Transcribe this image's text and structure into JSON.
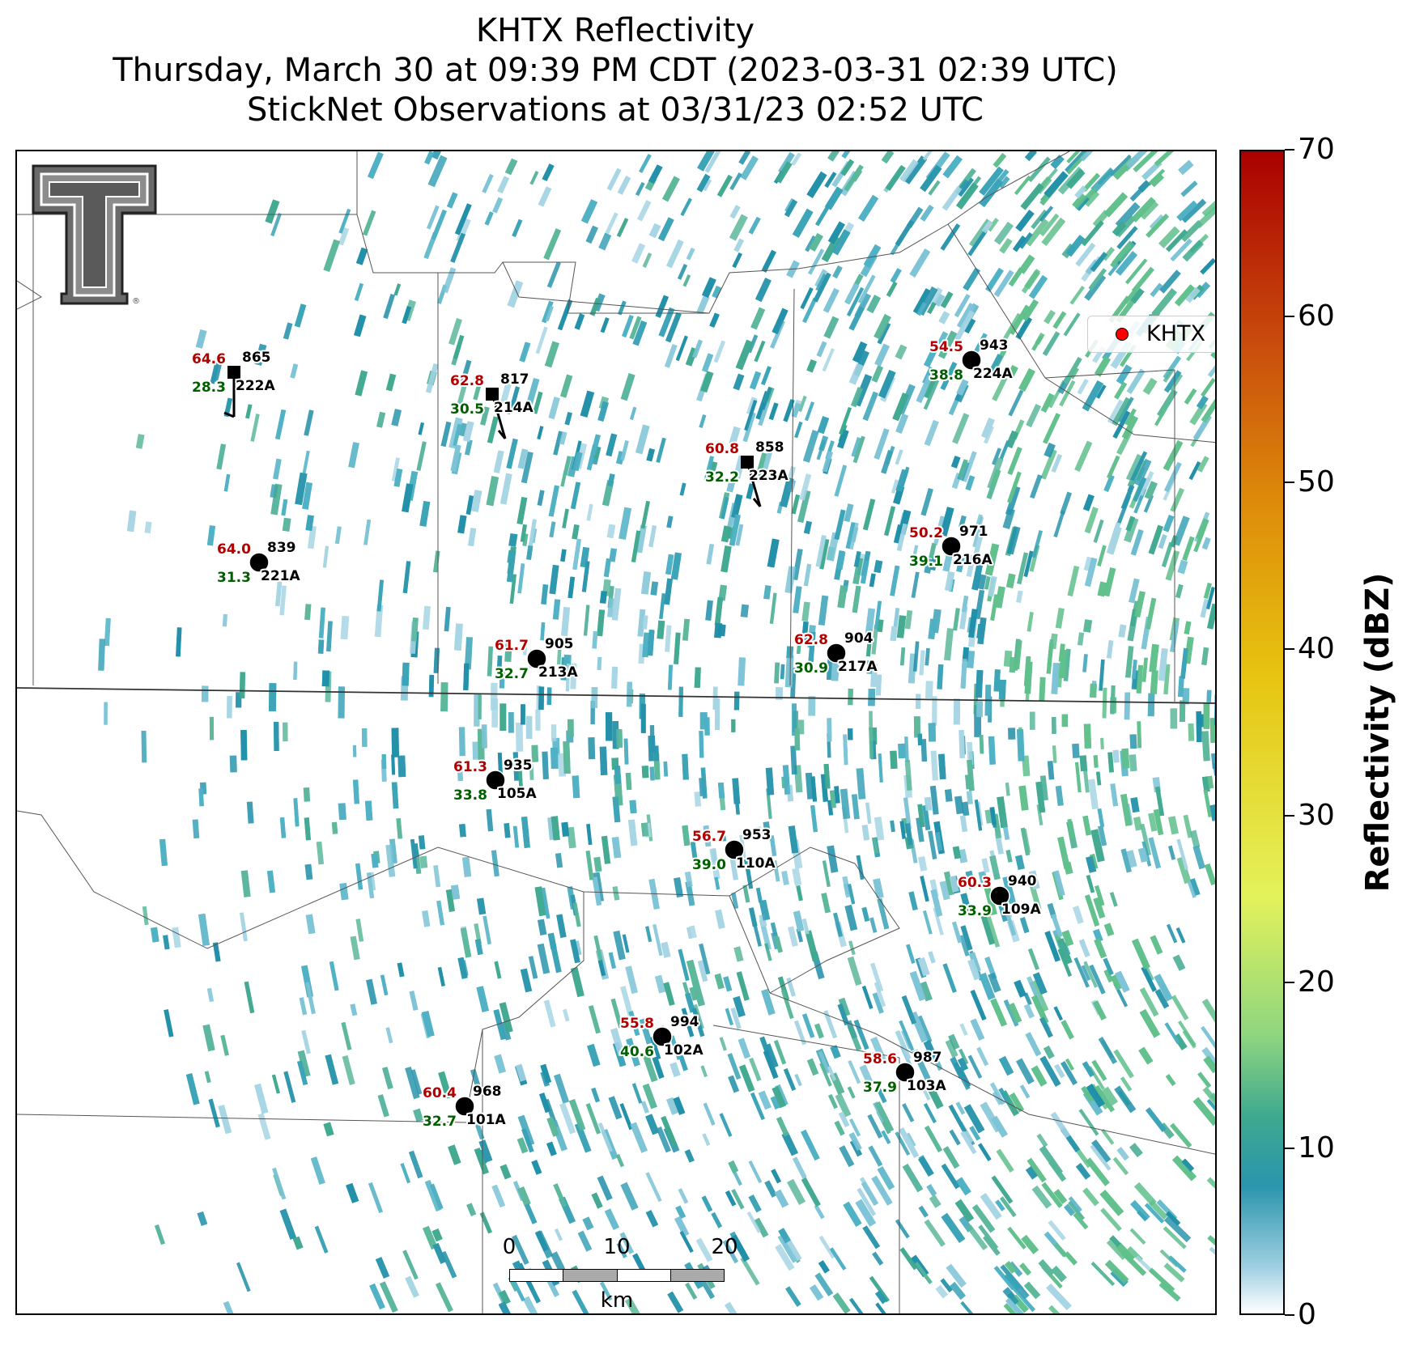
{
  "title": {
    "line1": "KHTX Reflectivity",
    "line2": "Thursday, March 30 at 09:39 PM CDT (2023-03-31 02:39 UTC)",
    "line3": "StickNet Observations at 03/31/23 02:52 UTC"
  },
  "legend": {
    "label": "KHTX",
    "marker_color": "#ff0000"
  },
  "colorbar": {
    "label": "Reflectivity (dBZ)",
    "ticks": [
      "0",
      "10",
      "20",
      "30",
      "40",
      "50",
      "60",
      "70"
    ],
    "min": 0,
    "max": 70
  },
  "scalebar": {
    "ticks": [
      "0",
      "10",
      "20"
    ],
    "unit": "km"
  },
  "logo": {
    "name": "texas-tech-double-t-logo"
  },
  "colors": {
    "temperature": "#b00000",
    "dewpoint": "#006000",
    "station": "#000000"
  },
  "stations": [
    {
      "id": "222A",
      "temp": "64.6",
      "dew": "28.3",
      "pres": "865",
      "marker": "square",
      "barb": "north"
    },
    {
      "id": "214A",
      "temp": "62.8",
      "dew": "30.5",
      "pres": "817",
      "marker": "square",
      "barb": "nnw"
    },
    {
      "id": "223A",
      "temp": "60.8",
      "dew": "32.2",
      "pres": "858",
      "marker": "square",
      "barb": "nnw"
    },
    {
      "id": "224A",
      "temp": "54.5",
      "dew": "38.8",
      "pres": "943",
      "marker": "circle",
      "barb": "calm"
    },
    {
      "id": "221A",
      "temp": "64.0",
      "dew": "31.3",
      "pres": "839",
      "marker": "circle",
      "barb": "calm"
    },
    {
      "id": "216A",
      "temp": "50.2",
      "dew": "39.1",
      "pres": "971",
      "marker": "circle",
      "barb": "calm"
    },
    {
      "id": "213A",
      "temp": "61.7",
      "dew": "32.7",
      "pres": "905",
      "marker": "circle",
      "barb": "calm"
    },
    {
      "id": "217A",
      "temp": "62.8",
      "dew": "30.9",
      "pres": "904",
      "marker": "circle",
      "barb": "calm"
    },
    {
      "id": "105A",
      "temp": "61.3",
      "dew": "33.8",
      "pres": "935",
      "marker": "circle",
      "barb": "calm"
    },
    {
      "id": "110A",
      "temp": "56.7",
      "dew": "39.0",
      "pres": "953",
      "marker": "circle",
      "barb": "calm"
    },
    {
      "id": "109A",
      "temp": "60.3",
      "dew": "33.9",
      "pres": "940",
      "marker": "circle",
      "barb": "calm"
    },
    {
      "id": "102A",
      "temp": "55.8",
      "dew": "40.6",
      "pres": "994",
      "marker": "circle",
      "barb": "calm"
    },
    {
      "id": "103A",
      "temp": "58.6",
      "dew": "37.9",
      "pres": "987",
      "marker": "circle",
      "barb": "calm"
    },
    {
      "id": "101A",
      "temp": "60.4",
      "dew": "32.7",
      "pres": "968",
      "marker": "circle",
      "barb": "calm"
    }
  ]
}
